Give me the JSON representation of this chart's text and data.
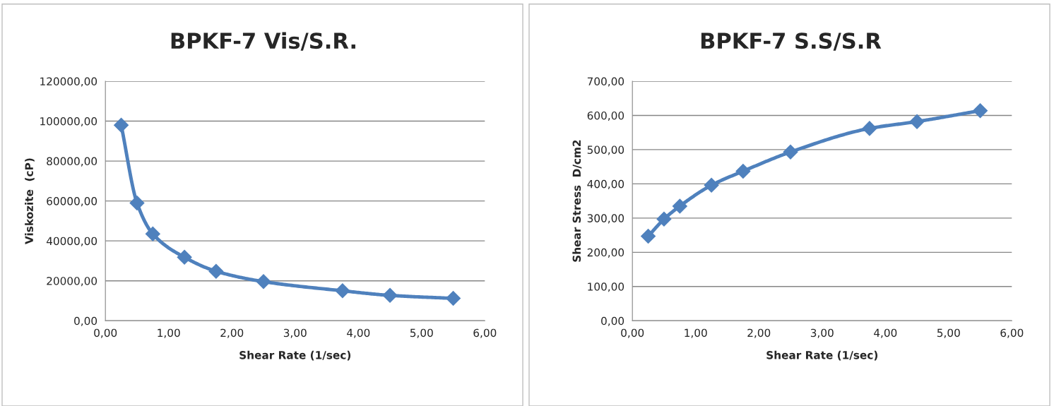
{
  "chart_data": [
    {
      "type": "line",
      "title": "BPKF-7 Vis/S.R.",
      "xlabel": "Shear Rate (1/sec)",
      "ylabel": "Viskozite  (cP)",
      "x": [
        0.25,
        0.5,
        0.75,
        1.25,
        1.75,
        2.5,
        3.75,
        4.5,
        5.5
      ],
      "series": [
        {
          "color": "#4f81bd",
          "values": [
            98000,
            59000,
            43500,
            31800,
            24800,
            19600,
            15000,
            12700,
            11200
          ]
        }
      ],
      "xlim": [
        0,
        6
      ],
      "xticks": [
        {
          "value": 0,
          "label": "0,00"
        },
        {
          "value": 1,
          "label": "1,00"
        },
        {
          "value": 2,
          "label": "2,00"
        },
        {
          "value": 3,
          "label": "3,00"
        },
        {
          "value": 4,
          "label": "4,00"
        },
        {
          "value": 5,
          "label": "5,00"
        },
        {
          "value": 6,
          "label": "6,00"
        }
      ],
      "ylim": [
        0,
        120000
      ],
      "yticks": [
        {
          "value": 0,
          "label": "0,00"
        },
        {
          "value": 20000,
          "label": "20000,00"
        },
        {
          "value": 40000,
          "label": "40000,00"
        },
        {
          "value": 60000,
          "label": "60000,00"
        },
        {
          "value": 80000,
          "label": "80000,00"
        },
        {
          "value": 100000,
          "label": "100000,00"
        },
        {
          "value": 120000,
          "label": "120000,00"
        }
      ],
      "grid": "y",
      "marker": "diamond",
      "line_style": "solid"
    },
    {
      "type": "line",
      "title": "BPKF-7 S.S/S.R",
      "xlabel": "Shear Rate (1/sec)",
      "ylabel": "Shear Stress  D/cm2",
      "x": [
        0.25,
        0.5,
        0.75,
        1.25,
        1.75,
        2.5,
        3.75,
        4.5,
        5.5
      ],
      "series": [
        {
          "color": "#4f81bd",
          "values": [
            247,
            297,
            335,
            396,
            437,
            493,
            562,
            582,
            614
          ]
        }
      ],
      "xlim": [
        0,
        6
      ],
      "xticks": [
        {
          "value": 0,
          "label": "0,00"
        },
        {
          "value": 1,
          "label": "1,00"
        },
        {
          "value": 2,
          "label": "2,00"
        },
        {
          "value": 3,
          "label": "3,00"
        },
        {
          "value": 4,
          "label": "4,00"
        },
        {
          "value": 5,
          "label": "5,00"
        },
        {
          "value": 6,
          "label": "6,00"
        }
      ],
      "ylim": [
        0,
        700
      ],
      "yticks": [
        {
          "value": 0,
          "label": "0,00"
        },
        {
          "value": 100,
          "label": "100,00"
        },
        {
          "value": 200,
          "label": "200,00"
        },
        {
          "value": 300,
          "label": "300,00"
        },
        {
          "value": 400,
          "label": "400,00"
        },
        {
          "value": 500,
          "label": "500,00"
        },
        {
          "value": 600,
          "label": "600,00"
        },
        {
          "value": 700,
          "label": "700,00"
        }
      ],
      "grid": "y",
      "marker": "diamond",
      "line_style": "solid"
    }
  ]
}
